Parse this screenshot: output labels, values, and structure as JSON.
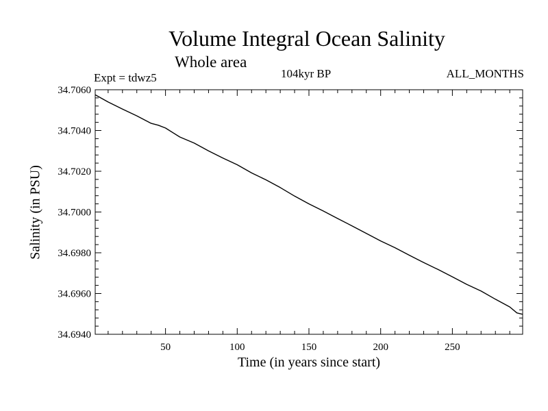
{
  "chart_data": {
    "type": "line",
    "title": "Volume Integral Ocean Salinity",
    "subtitle": "Whole area",
    "annotations": {
      "experiment": "Expt = tdwz5",
      "period": "104kyr BP",
      "months": "ALL_MONTHS"
    },
    "xlabel": "Time (in years since start)",
    "ylabel": "Salinity (in PSU)",
    "xlim": [
      1,
      299
    ],
    "ylim": [
      34.694,
      34.706
    ],
    "x_ticks": [
      50,
      100,
      150,
      200,
      250
    ],
    "x_tick_labels": [
      "50",
      "100",
      "150",
      "200",
      "250"
    ],
    "y_ticks": [
      34.694,
      34.696,
      34.698,
      34.7,
      34.702,
      34.704,
      34.706
    ],
    "y_tick_labels": [
      "34.6940",
      "34.6960",
      "34.6980",
      "34.7000",
      "34.7020",
      "34.7040",
      "34.7060"
    ],
    "grid": false,
    "series": [
      {
        "x": [
          1,
          10,
          20,
          30,
          40,
          45,
          50,
          60,
          70,
          80,
          90,
          100,
          110,
          120,
          130,
          140,
          150,
          160,
          170,
          180,
          190,
          200,
          210,
          220,
          230,
          240,
          250,
          260,
          270,
          280,
          290,
          295,
          299
        ],
        "y": [
          34.70575,
          34.7054,
          34.70505,
          34.70472,
          34.70435,
          34.70426,
          34.70412,
          34.70368,
          34.70338,
          34.703,
          34.70265,
          34.70232,
          34.70192,
          34.70158,
          34.7012,
          34.70078,
          34.7004,
          34.70005,
          34.69968,
          34.69932,
          34.69895,
          34.69858,
          34.69825,
          34.69788,
          34.69752,
          34.69718,
          34.69682,
          34.69645,
          34.69612,
          34.69572,
          34.69534,
          34.69505,
          34.69498
        ]
      }
    ]
  }
}
